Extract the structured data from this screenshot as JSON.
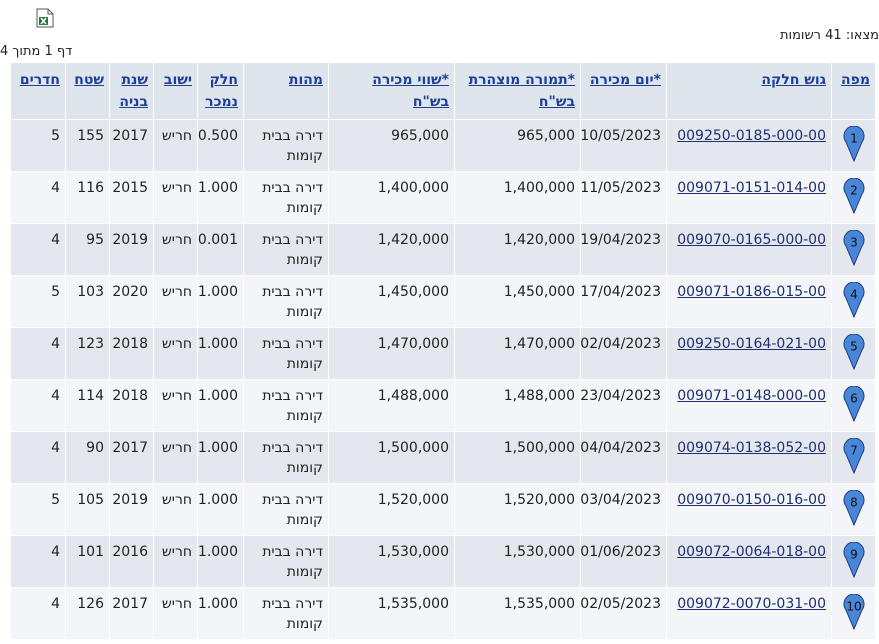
{
  "top": {
    "found": "מצאו: 41 רשומות",
    "page": "דף 1 מתוך 4"
  },
  "table": {
    "headers": [
      "מפה",
      "גוש חלקה",
      "*יום מכירה",
      "*תמורה מוצהרת בש\"ח",
      "*שווי מכירה בש\"ח",
      "מהות",
      "חלק נמכר",
      "ישוב",
      "שנת בניה",
      "שטח",
      "חדרים"
    ],
    "rows": [
      [
        "1",
        "009250-0185-000-00",
        "10/05/2023",
        "965,000",
        "965,000",
        "דירה בבית קומות",
        "0.500",
        "חריש",
        "2017",
        "155",
        "5"
      ],
      [
        "2",
        "009071-0151-014-00",
        "11/05/2023",
        "1,400,000",
        "1,400,000",
        "דירה בבית קומות",
        "1.000",
        "חריש",
        "2015",
        "116",
        "4"
      ],
      [
        "3",
        "009070-0165-000-00",
        "19/04/2023",
        "1,420,000",
        "1,420,000",
        "דירה בבית קומות",
        "0.001",
        "חריש",
        "2019",
        "95",
        "4"
      ],
      [
        "4",
        "009071-0186-015-00",
        "17/04/2023",
        "1,450,000",
        "1,450,000",
        "דירה בבית קומות",
        "1.000",
        "חריש",
        "2020",
        "103",
        "5"
      ],
      [
        "5",
        "009250-0164-021-00",
        "02/04/2023",
        "1,470,000",
        "1,470,000",
        "דירה בבית קומות",
        "1.000",
        "חריש",
        "2018",
        "123",
        "4"
      ],
      [
        "6",
        "009071-0148-000-00",
        "23/04/2023",
        "1,488,000",
        "1,488,000",
        "דירה בבית קומות",
        "1.000",
        "חריש",
        "2018",
        "114",
        "4"
      ],
      [
        "7",
        "009074-0138-052-00",
        "04/04/2023",
        "1,500,000",
        "1,500,000",
        "דירה בבית קומות",
        "1.000",
        "חריש",
        "2017",
        "90",
        "4"
      ],
      [
        "8",
        "009070-0150-016-00",
        "03/04/2023",
        "1,520,000",
        "1,520,000",
        "דירה בבית קומות",
        "1.000",
        "חריש",
        "2019",
        "105",
        "5"
      ],
      [
        "9",
        "009072-0064-018-00",
        "01/06/2023",
        "1,530,000",
        "1,530,000",
        "דירה בבית קומות",
        "1.000",
        "חריש",
        "2016",
        "101",
        "4"
      ],
      [
        "10",
        "009072-0070-031-00",
        "02/05/2023",
        "1,535,000",
        "1,535,000",
        "דירה בבית קומות",
        "1.000",
        "חריש",
        "2017",
        "126",
        "4"
      ]
    ]
  }
}
